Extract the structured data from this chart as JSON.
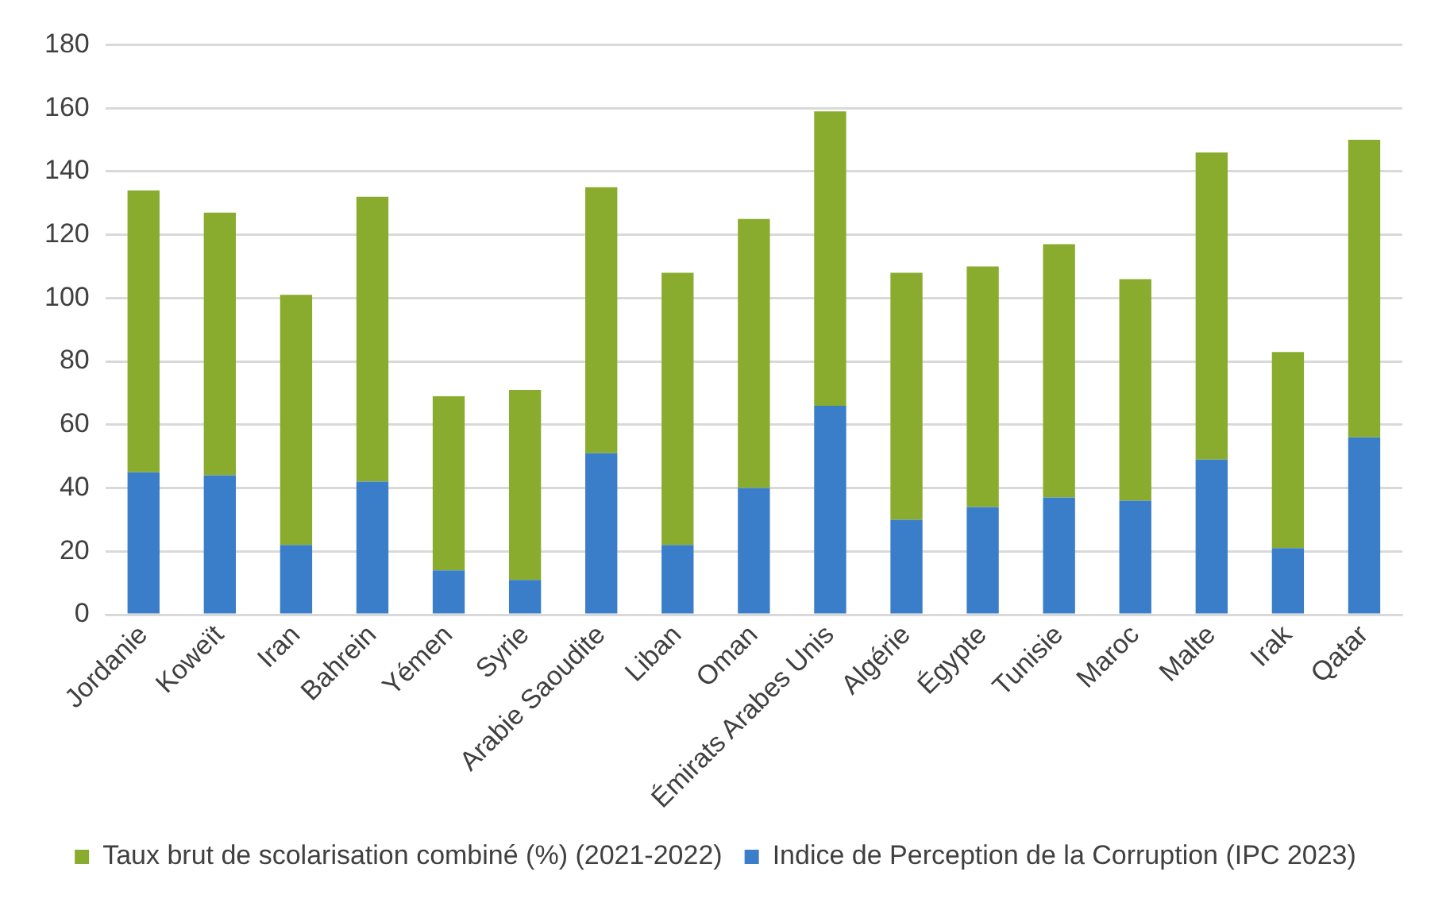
{
  "chart_data": {
    "type": "bar",
    "stacked": true,
    "categories": [
      "Jordanie",
      "Koweït",
      "Iran",
      "Bahrein",
      "Yémen",
      "Syrie",
      "Arabie Saoudite",
      "Liban",
      "Oman",
      "Émirats Arabes Unis",
      "Algérie",
      "Égypte",
      "Tunisie",
      "Maroc",
      "Malte",
      "Irak",
      "Qatar"
    ],
    "series": [
      {
        "name": "Indice de Perception de la Corruption (IPC 2023)",
        "color": "#3a7dc9",
        "values": [
          45,
          44,
          22,
          42,
          14,
          11,
          51,
          22,
          40,
          66,
          30,
          34,
          37,
          36,
          49,
          21,
          56
        ]
      },
      {
        "name": "Taux brut de scolarisation combiné (%) (2021-2022)",
        "color": "#8aac2e",
        "values": [
          89,
          83,
          79,
          90,
          55,
          60,
          84,
          86,
          85,
          93,
          78,
          76,
          80,
          70,
          97,
          62,
          94
        ]
      }
    ],
    "ylim": [
      0,
      180
    ],
    "yticks": [
      0,
      20,
      40,
      60,
      80,
      100,
      120,
      140,
      160,
      180
    ],
    "grid": "y",
    "legend": "bottom"
  }
}
